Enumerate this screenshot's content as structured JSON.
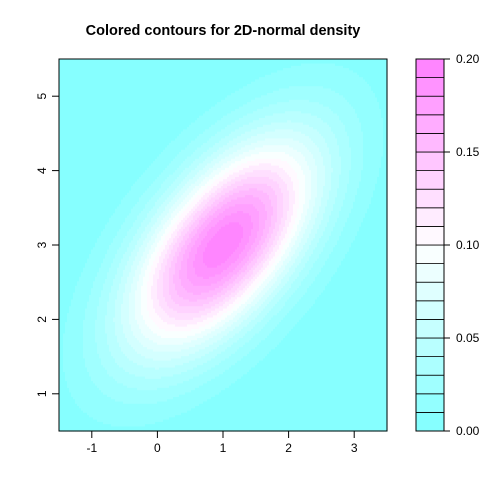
{
  "chart_data": {
    "type": "heatmap",
    "subtype": "filled-contour",
    "title": "Colored contours for 2D-normal density",
    "xlabel": "",
    "ylabel": "",
    "xlim": [
      -1.5,
      3.5
    ],
    "ylim": [
      0.5,
      5.5
    ],
    "x_ticks": [
      -1,
      0,
      1,
      2,
      3
    ],
    "y_ticks": [
      1,
      2,
      3,
      4,
      5
    ],
    "density": {
      "mean": [
        1.0,
        3.0
      ],
      "sd": [
        1.0,
        1.0
      ],
      "correlation": 0.6
    },
    "levels": [
      0.0,
      0.01,
      0.02,
      0.03,
      0.04,
      0.05,
      0.06,
      0.07,
      0.08,
      0.09,
      0.1,
      0.11,
      0.12,
      0.13,
      0.14,
      0.15,
      0.16,
      0.17,
      0.18,
      0.19,
      0.2
    ],
    "colorbar": {
      "ticks": [
        "0.00",
        "0.05",
        "0.10",
        "0.15",
        "0.20"
      ],
      "range": [
        0.0,
        0.2
      ]
    },
    "colors": {
      "low": "#80FFFF",
      "mid": "#FFFFFF",
      "high": "#FF80FF",
      "frame": "#000000"
    },
    "grid": false,
    "legend": "right"
  }
}
